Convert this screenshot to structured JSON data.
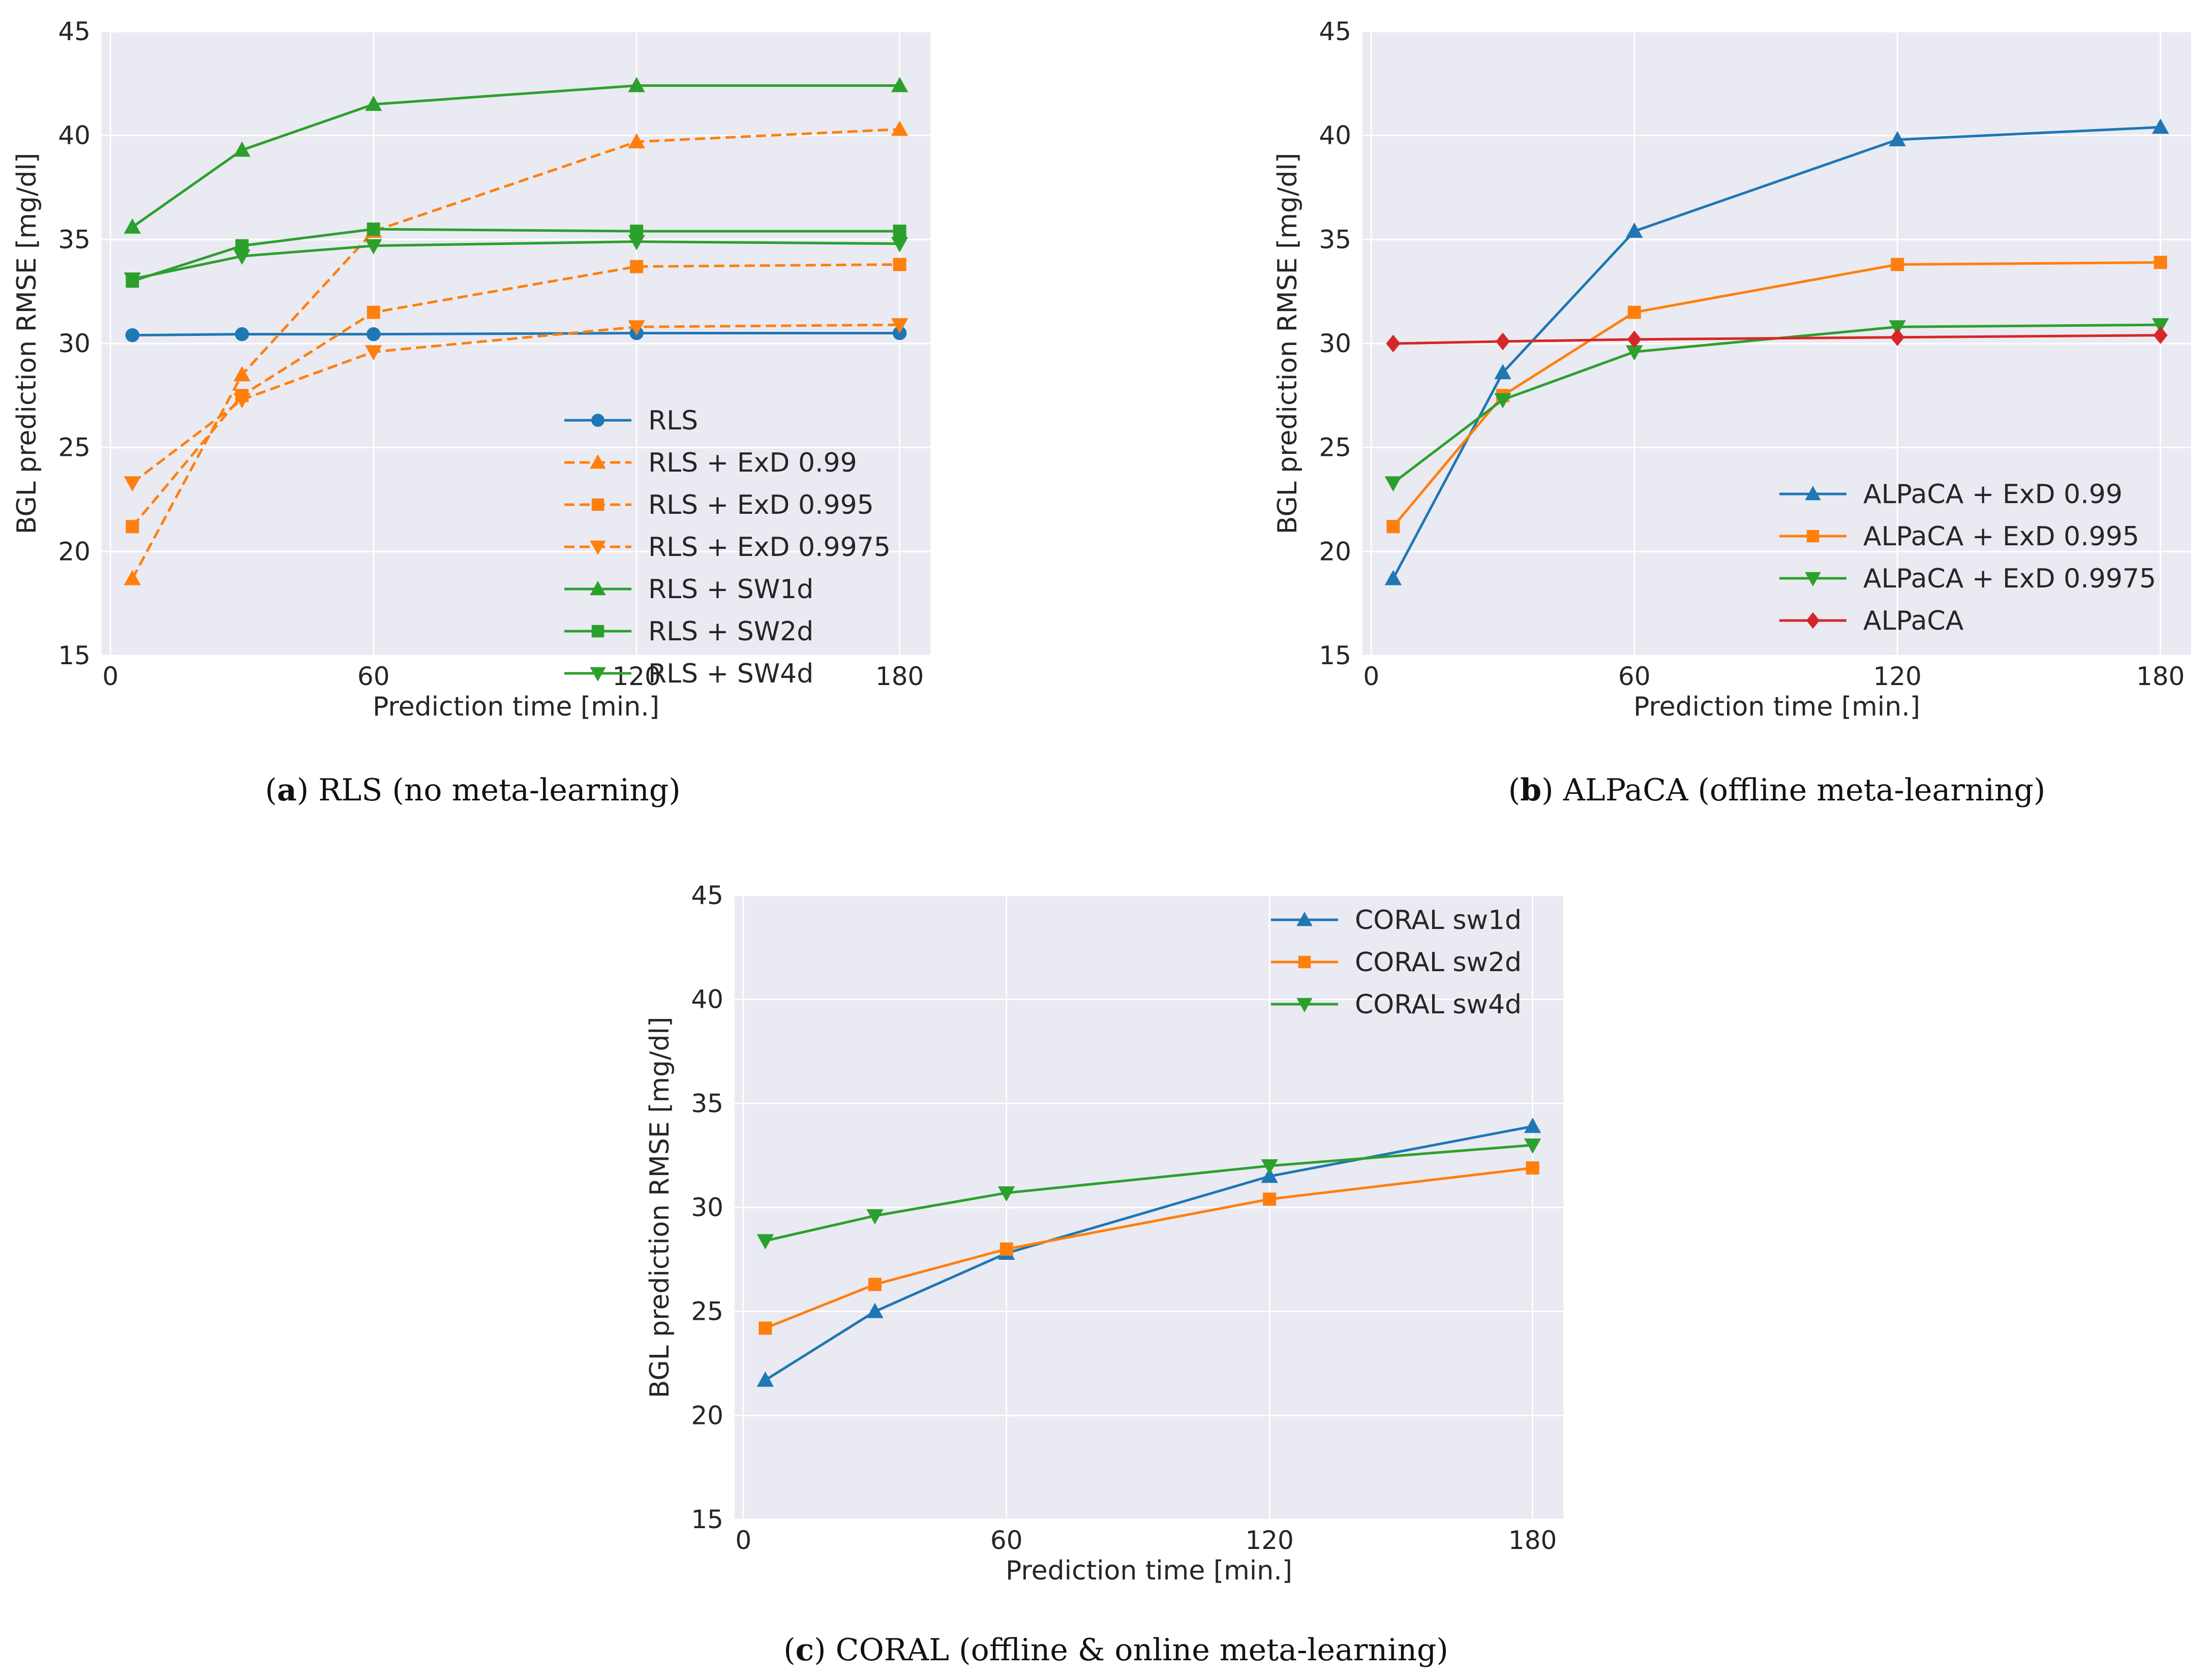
{
  "chart_data": [
    {
      "type": "line",
      "caption_letter": "a",
      "caption_text": "RLS (no meta-learning)",
      "xlabel": "Prediction time [min.]",
      "ylabel": "BGL prediction RMSE [mg/dl]",
      "xlim": [
        -2,
        187
      ],
      "ylim": [
        15,
        45
      ],
      "xticks": [
        0,
        60,
        120,
        180
      ],
      "yticks": [
        15,
        20,
        25,
        30,
        35,
        40,
        45
      ],
      "grid": true,
      "legend_position": "lower-right",
      "series": [
        {
          "name": "RLS",
          "color": "#1f77b4",
          "marker": "circle",
          "dashed": false,
          "x": [
            5,
            30,
            60,
            120,
            180
          ],
          "y": [
            30.4,
            30.45,
            30.45,
            30.5,
            30.5
          ]
        },
        {
          "name": "RLS + ExD 0.99",
          "color": "#ff7f0e",
          "marker": "triangle-up",
          "dashed": true,
          "x": [
            5,
            30,
            60,
            120,
            180
          ],
          "y": [
            18.7,
            28.5,
            35.4,
            39.7,
            40.3
          ]
        },
        {
          "name": "RLS + ExD 0.995",
          "color": "#ff7f0e",
          "marker": "square",
          "dashed": true,
          "x": [
            5,
            30,
            60,
            120,
            180
          ],
          "y": [
            21.2,
            27.5,
            31.5,
            33.7,
            33.8
          ]
        },
        {
          "name": "RLS + ExD 0.9975",
          "color": "#ff7f0e",
          "marker": "triangle-down",
          "dashed": true,
          "x": [
            5,
            30,
            60,
            120,
            180
          ],
          "y": [
            23.3,
            27.3,
            29.6,
            30.8,
            30.9
          ]
        },
        {
          "name": "RLS + SW1d",
          "color": "#2ca02c",
          "marker": "triangle-up",
          "dashed": false,
          "x": [
            5,
            30,
            60,
            120,
            180
          ],
          "y": [
            35.6,
            39.3,
            41.5,
            42.4,
            42.4
          ]
        },
        {
          "name": "RLS + SW2d",
          "color": "#2ca02c",
          "marker": "square",
          "dashed": false,
          "x": [
            5,
            30,
            60,
            120,
            180
          ],
          "y": [
            33.0,
            34.7,
            35.5,
            35.4,
            35.4
          ]
        },
        {
          "name": "RLS + SW4d",
          "color": "#2ca02c",
          "marker": "triangle-down",
          "dashed": false,
          "x": [
            5,
            30,
            60,
            120,
            180
          ],
          "y": [
            33.1,
            34.2,
            34.7,
            34.9,
            34.8
          ]
        }
      ]
    },
    {
      "type": "line",
      "caption_letter": "b",
      "caption_text": "ALPaCA (offline meta-learning)",
      "xlabel": "Prediction time [min.]",
      "ylabel": "BGL prediction RMSE [mg/dl]",
      "xlim": [
        -2,
        187
      ],
      "ylim": [
        15,
        45
      ],
      "xticks": [
        0,
        60,
        120,
        180
      ],
      "yticks": [
        15,
        20,
        25,
        30,
        35,
        40,
        45
      ],
      "grid": true,
      "legend_position": "lower-right",
      "series": [
        {
          "name": "ALPaCA + ExD 0.99",
          "color": "#1f77b4",
          "marker": "triangle-up",
          "dashed": false,
          "x": [
            5,
            30,
            60,
            120,
            180
          ],
          "y": [
            18.7,
            28.6,
            35.4,
            39.8,
            40.4
          ]
        },
        {
          "name": "ALPaCA + ExD 0.995",
          "color": "#ff7f0e",
          "marker": "square",
          "dashed": false,
          "x": [
            5,
            30,
            60,
            120,
            180
          ],
          "y": [
            21.2,
            27.5,
            31.5,
            33.8,
            33.9
          ]
        },
        {
          "name": "ALPaCA + ExD 0.9975",
          "color": "#2ca02c",
          "marker": "triangle-down",
          "dashed": false,
          "x": [
            5,
            30,
            60,
            120,
            180
          ],
          "y": [
            23.3,
            27.3,
            29.6,
            30.8,
            30.9
          ]
        },
        {
          "name": "ALPaCA",
          "color": "#d62728",
          "marker": "diamond",
          "dashed": false,
          "x": [
            5,
            30,
            60,
            120,
            180
          ],
          "y": [
            30.0,
            30.1,
            30.2,
            30.3,
            30.4
          ]
        }
      ]
    },
    {
      "type": "line",
      "caption_letter": "c",
      "caption_text": "CORAL (offline & online meta-learning)",
      "xlabel": "Prediction time [min.]",
      "ylabel": "BGL prediction RMSE [mg/dl]",
      "xlim": [
        -2,
        187
      ],
      "ylim": [
        15,
        45
      ],
      "xticks": [
        0,
        60,
        120,
        180
      ],
      "yticks": [
        15,
        20,
        25,
        30,
        35,
        40,
        45
      ],
      "grid": true,
      "legend_position": "top-right",
      "series": [
        {
          "name": "CORAL sw1d",
          "color": "#1f77b4",
          "marker": "triangle-up",
          "dashed": false,
          "x": [
            5,
            30,
            60,
            120,
            180
          ],
          "y": [
            21.7,
            25.0,
            27.8,
            31.5,
            33.9
          ]
        },
        {
          "name": "CORAL sw2d",
          "color": "#ff7f0e",
          "marker": "square",
          "dashed": false,
          "x": [
            5,
            30,
            60,
            120,
            180
          ],
          "y": [
            24.2,
            26.3,
            28.0,
            30.4,
            31.9
          ]
        },
        {
          "name": "CORAL sw4d",
          "color": "#2ca02c",
          "marker": "triangle-down",
          "dashed": false,
          "x": [
            5,
            30,
            60,
            120,
            180
          ],
          "y": [
            28.4,
            29.6,
            30.7,
            32.0,
            33.0
          ]
        }
      ]
    }
  ]
}
